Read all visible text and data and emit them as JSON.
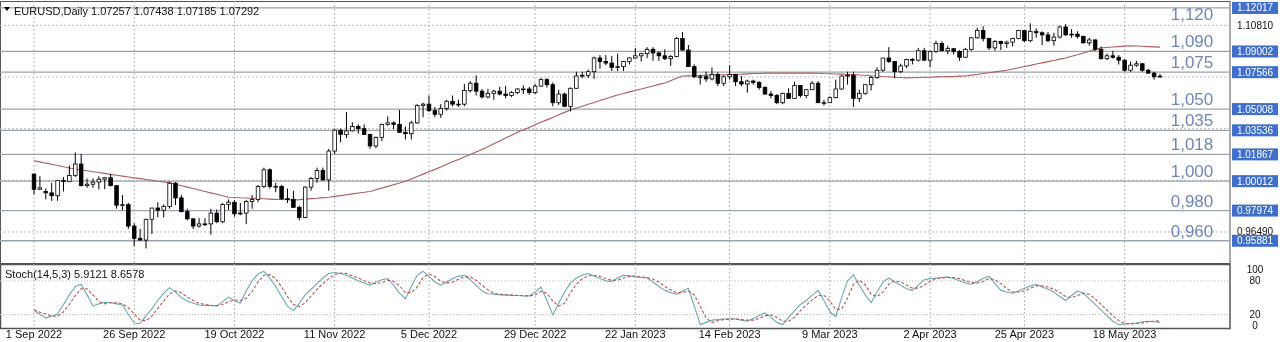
{
  "chart_data": [
    {
      "type": "candlestick",
      "title": "EURUSD,Daily 1.07257 1.07438 1.07185 1.07292",
      "categories": [
        null,
        null,
        null,
        null,
        null,
        null,
        null,
        null,
        null,
        null,
        null,
        null,
        null,
        null,
        null,
        null,
        null,
        null,
        null,
        null,
        null,
        null,
        null,
        null,
        null,
        null,
        null,
        null,
        null,
        null,
        null,
        null,
        null,
        null,
        null,
        null,
        null,
        null,
        null,
        null,
        null,
        null,
        null,
        null,
        null,
        null,
        null,
        null,
        null,
        null,
        null,
        null,
        null,
        null,
        null,
        null,
        null,
        null,
        null,
        null,
        null,
        null,
        null,
        null,
        null,
        null,
        null,
        null,
        null,
        null,
        null,
        null,
        null,
        null,
        null,
        null,
        null,
        null,
        null,
        null,
        null,
        null,
        null,
        null,
        null,
        null,
        null,
        null,
        null,
        null,
        null,
        null,
        null,
        null,
        null,
        null,
        null,
        null,
        null,
        null,
        null,
        null,
        null,
        null,
        null,
        null,
        null,
        null,
        null,
        null,
        null,
        null,
        null,
        null,
        null,
        null,
        null,
        null,
        null,
        null,
        null,
        null,
        null,
        null,
        null,
        null,
        null,
        null,
        null,
        null,
        null,
        null,
        null,
        null,
        null,
        null,
        null,
        null,
        null,
        null,
        null,
        null,
        null,
        null,
        null,
        null,
        null,
        null,
        null,
        null,
        null,
        null,
        null,
        null,
        null,
        null,
        null,
        null,
        null,
        null,
        null,
        null,
        null,
        null,
        null,
        null,
        null,
        null,
        null,
        null,
        null,
        null,
        null,
        null,
        null,
        null,
        null,
        null,
        null,
        null,
        null,
        null,
        null,
        null,
        null,
        null,
        null,
        null,
        null,
        null,
        null,
        null
      ],
      "ohlc": [
        [
          1.005,
          1.0055,
          0.991,
          0.9945
        ],
        [
          0.9945,
          1.0035,
          0.994,
          0.9955
        ],
        [
          0.993,
          0.995,
          0.9875,
          0.992
        ],
        [
          0.992,
          0.999,
          0.9865,
          0.99
        ],
        [
          0.99,
          1.001,
          0.9865,
          1.0005
        ],
        [
          1.0005,
          1.003,
          0.993,
          1.0
        ],
        [
          1.0,
          1.011,
          0.9995,
          1.004
        ],
        [
          1.004,
          1.02,
          1.003,
          1.012
        ],
        [
          1.012,
          1.019,
          0.9965,
          0.997
        ],
        [
          0.997,
          1.002,
          0.9955,
          0.998
        ],
        [
          0.998,
          1.002,
          0.9955,
          0.9995
        ],
        [
          0.9995,
          1.0035,
          0.9945,
          1.0015
        ],
        [
          1.0015,
          1.003,
          0.9945,
          1.0025
        ],
        [
          1.0025,
          1.005,
          0.9965,
          0.997
        ],
        [
          0.997,
          0.9975,
          0.981,
          0.9835
        ],
        [
          0.9835,
          0.9905,
          0.98,
          0.9838
        ],
        [
          0.9838,
          0.985,
          0.967,
          0.969
        ],
        [
          0.969,
          0.971,
          0.955,
          0.9605
        ],
        [
          0.9605,
          0.967,
          0.959,
          0.9593
        ],
        [
          0.9593,
          0.974,
          0.9535,
          0.9737
        ],
        [
          0.9737,
          0.9815,
          0.9635,
          0.9815
        ],
        [
          0.9815,
          0.9855,
          0.975,
          0.98
        ],
        [
          0.98,
          0.984,
          0.975,
          0.9826
        ],
        [
          0.9826,
          0.9999,
          0.981,
          0.9987
        ],
        [
          0.9987,
          0.9995,
          0.9835,
          0.9885
        ],
        [
          0.9885,
          0.9905,
          0.9785,
          0.979
        ],
        [
          0.979,
          0.981,
          0.973,
          0.974
        ],
        [
          0.974,
          0.9745,
          0.967,
          0.969
        ],
        [
          0.969,
          0.9745,
          0.968,
          0.9705
        ],
        [
          0.9705,
          0.9745,
          0.969,
          0.9705
        ],
        [
          0.9705,
          0.981,
          0.963,
          0.978
        ],
        [
          0.978,
          0.9805,
          0.971,
          0.972
        ],
        [
          0.972,
          0.985,
          0.971,
          0.984
        ],
        [
          0.984,
          0.9875,
          0.98,
          0.9855
        ],
        [
          0.9855,
          0.987,
          0.9755,
          0.9775
        ],
        [
          0.9775,
          0.985,
          0.9765,
          0.978
        ],
        [
          0.978,
          0.987,
          0.9705,
          0.986
        ],
        [
          0.986,
          0.9905,
          0.981,
          0.9875
        ],
        [
          0.9875,
          0.9975,
          0.9855,
          0.9965
        ],
        [
          0.9965,
          1.0095,
          0.9955,
          1.008
        ],
        [
          1.008,
          1.009,
          0.995,
          0.9965
        ],
        [
          0.9965,
          0.999,
          0.9925,
          0.9965
        ],
        [
          0.9965,
          0.9975,
          0.987,
          0.988
        ],
        [
          0.988,
          0.995,
          0.985,
          0.9875
        ],
        [
          0.9875,
          0.9935,
          0.9815,
          0.982
        ],
        [
          0.982,
          0.983,
          0.973,
          0.975
        ],
        [
          0.975,
          0.9965,
          0.9745,
          0.996
        ],
        [
          0.996,
          1.003,
          0.9935,
          1.002
        ],
        [
          1.002,
          1.0095,
          0.999,
          1.0075
        ],
        [
          1.0075,
          1.0095,
          1.0005,
          1.001
        ],
        [
          1.001,
          1.0225,
          0.9935,
          1.021
        ],
        [
          1.021,
          1.0365,
          1.019,
          1.0355
        ],
        [
          1.0355,
          1.0365,
          1.027,
          1.0325
        ],
        [
          1.0325,
          1.048,
          1.03,
          1.035
        ],
        [
          1.035,
          1.041,
          1.0345,
          1.038
        ],
        [
          1.038,
          1.0395,
          1.033,
          1.0365
        ],
        [
          1.0365,
          1.0395,
          1.0325,
          1.0325
        ],
        [
          1.0325,
          1.033,
          1.0225,
          1.0245
        ],
        [
          1.0245,
          1.031,
          1.023,
          1.0305
        ],
        [
          1.0305,
          1.04,
          1.028,
          1.0395
        ],
        [
          1.0395,
          1.045,
          1.0385,
          1.0405
        ],
        [
          1.0405,
          1.0415,
          1.036,
          1.0395
        ],
        [
          1.0395,
          1.0495,
          1.0335,
          1.034
        ],
        [
          1.034,
          1.038,
          1.029,
          1.033
        ],
        [
          1.033,
          1.042,
          1.029,
          1.0405
        ],
        [
          1.0405,
          1.0535,
          1.04,
          1.0525
        ],
        [
          1.0525,
          1.0545,
          1.0445,
          1.0535
        ],
        [
          1.0535,
          1.0595,
          1.048,
          1.049
        ],
        [
          1.049,
          1.0515,
          1.0445,
          1.0465
        ],
        [
          1.0465,
          1.0535,
          1.044,
          1.0505
        ],
        [
          1.0505,
          1.0565,
          1.049,
          1.0555
        ],
        [
          1.0555,
          1.0595,
          1.052,
          1.0535
        ],
        [
          1.0535,
          1.0565,
          1.0515,
          1.0535
        ],
        [
          1.0535,
          1.0675,
          1.052,
          1.063
        ],
        [
          1.063,
          1.0695,
          1.0615,
          1.068
        ],
        [
          1.068,
          1.0735,
          1.0595,
          1.0625
        ],
        [
          1.0625,
          1.064,
          1.0575,
          1.0585
        ],
        [
          1.0585,
          1.064,
          1.0575,
          1.061
        ],
        [
          1.061,
          1.0635,
          1.0565,
          1.0625
        ],
        [
          1.0625,
          1.0655,
          1.0595,
          1.0605
        ],
        [
          1.0605,
          1.066,
          1.0575,
          1.0595
        ],
        [
          1.0595,
          1.0625,
          1.0585,
          1.0615
        ],
        [
          1.0615,
          1.0645,
          1.0605,
          1.064
        ],
        [
          1.064,
          1.0665,
          1.0605,
          1.064
        ],
        [
          1.064,
          1.0655,
          1.06,
          1.0615
        ],
        [
          1.0615,
          1.0675,
          1.0605,
          1.066
        ],
        [
          1.066,
          1.0715,
          1.0655,
          1.0705
        ],
        [
          1.0705,
          1.0715,
          1.065,
          1.067
        ],
        [
          1.067,
          1.0685,
          1.052,
          1.0545
        ],
        [
          1.0545,
          1.0635,
          1.053,
          1.0605
        ],
        [
          1.0605,
          1.0615,
          1.0515,
          1.052
        ],
        [
          1.052,
          1.065,
          1.0485,
          1.0645
        ],
        [
          1.0645,
          1.076,
          1.064,
          1.073
        ],
        [
          1.073,
          1.076,
          1.0715,
          1.0735
        ],
        [
          1.0735,
          1.0775,
          1.0715,
          1.076
        ],
        [
          1.076,
          1.0865,
          1.071,
          1.0855
        ],
        [
          1.0855,
          1.0875,
          1.078,
          1.083
        ],
        [
          1.083,
          1.0875,
          1.0805,
          1.082
        ],
        [
          1.082,
          1.087,
          1.0765,
          1.079
        ],
        [
          1.079,
          1.0885,
          1.0765,
          1.0795
        ],
        [
          1.0795,
          1.0835,
          1.0765,
          1.083
        ],
        [
          1.083,
          1.086,
          1.081,
          1.0855
        ],
        [
          1.0855,
          1.0925,
          1.085,
          1.087
        ],
        [
          1.087,
          1.089,
          1.083,
          1.0885
        ],
        [
          1.0885,
          1.093,
          1.0855,
          1.0915
        ],
        [
          1.0915,
          1.093,
          1.0835,
          1.089
        ],
        [
          1.089,
          1.09,
          1.0835,
          1.087
        ],
        [
          1.087,
          1.0915,
          1.084,
          1.085
        ],
        [
          1.085,
          1.0875,
          1.08,
          1.0865
        ],
        [
          1.0865,
          1.1,
          1.086,
          1.099
        ],
        [
          1.099,
          1.1035,
          1.0905,
          1.091
        ],
        [
          1.091,
          1.0945,
          1.0795,
          1.0795
        ],
        [
          1.0795,
          1.081,
          1.0715,
          1.0725
        ],
        [
          1.0725,
          1.074,
          1.067,
          1.0725
        ],
        [
          1.0725,
          1.076,
          1.069,
          1.071
        ],
        [
          1.071,
          1.079,
          1.07,
          1.074
        ],
        [
          1.074,
          1.0755,
          1.066,
          1.068
        ],
        [
          1.068,
          1.0735,
          1.066,
          1.0725
        ],
        [
          1.0725,
          1.0805,
          1.0705,
          1.074
        ],
        [
          1.074,
          1.0745,
          1.066,
          1.069
        ],
        [
          1.069,
          1.073,
          1.066,
          1.0675
        ],
        [
          1.0675,
          1.0705,
          1.0615,
          1.0695
        ],
        [
          1.0695,
          1.0705,
          1.067,
          1.0685
        ],
        [
          1.0685,
          1.0695,
          1.0635,
          1.065
        ],
        [
          1.065,
          1.066,
          1.06,
          1.0605
        ],
        [
          1.0605,
          1.0625,
          1.0575,
          1.0595
        ],
        [
          1.0595,
          1.0605,
          1.0535,
          1.0545
        ],
        [
          1.0545,
          1.0615,
          1.0535,
          1.061
        ],
        [
          1.061,
          1.0645,
          1.0575,
          1.0575
        ],
        [
          1.0575,
          1.069,
          1.0575,
          1.0665
        ],
        [
          1.0665,
          1.0665,
          1.058,
          1.0595
        ],
        [
          1.0595,
          1.064,
          1.0575,
          1.0635
        ],
        [
          1.0635,
          1.0695,
          1.0635,
          1.068
        ],
        [
          1.068,
          1.0695,
          1.0545,
          1.0545
        ],
        [
          1.0545,
          1.0565,
          1.0525,
          1.0545
        ],
        [
          1.0545,
          1.059,
          1.0545,
          1.058
        ],
        [
          1.058,
          1.0705,
          1.0575,
          1.064
        ],
        [
          1.064,
          1.0735,
          1.0635,
          1.073
        ],
        [
          1.073,
          1.076,
          1.067,
          1.0735
        ],
        [
          1.0735,
          1.076,
          1.0515,
          1.0575
        ],
        [
          1.0575,
          1.0635,
          1.055,
          1.061
        ],
        [
          1.061,
          1.067,
          1.06,
          1.067
        ],
        [
          1.067,
          1.073,
          1.063,
          1.072
        ],
        [
          1.072,
          1.079,
          1.071,
          1.077
        ],
        [
          1.077,
          1.0855,
          1.076,
          1.0855
        ],
        [
          1.0855,
          1.093,
          1.082,
          1.083
        ],
        [
          1.083,
          1.0835,
          1.0715,
          1.076
        ],
        [
          1.076,
          1.0815,
          1.075,
          1.08
        ],
        [
          1.08,
          1.085,
          1.0785,
          1.0845
        ],
        [
          1.0845,
          1.0855,
          1.081,
          1.084
        ],
        [
          1.084,
          1.0925,
          1.083,
          1.0905
        ],
        [
          1.0905,
          1.0925,
          1.0835,
          1.084
        ],
        [
          1.084,
          1.0905,
          1.079,
          1.09
        ],
        [
          1.09,
          1.0975,
          1.089,
          1.0955
        ],
        [
          1.0955,
          1.097,
          1.0905,
          1.0905
        ],
        [
          1.0905,
          1.094,
          1.088,
          1.092
        ],
        [
          1.092,
          1.0925,
          1.088,
          1.09
        ],
        [
          1.09,
          1.091,
          1.0835,
          1.086
        ],
        [
          1.086,
          1.0925,
          1.0855,
          1.0915
        ],
        [
          1.0915,
          1.1,
          1.0905,
          1.0995
        ],
        [
          1.0995,
          1.1065,
          1.099,
          1.1045
        ],
        [
          1.1045,
          1.1075,
          1.097,
          1.099
        ],
        [
          1.099,
          1.0995,
          1.091,
          1.0925
        ],
        [
          1.0925,
          1.098,
          1.0905,
          1.097
        ],
        [
          1.097,
          1.0975,
          1.091,
          1.0955
        ],
        [
          1.0955,
          1.0975,
          1.0925,
          1.0965
        ],
        [
          1.0965,
          1.0995,
          1.0935,
          1.099
        ],
        [
          1.099,
          1.105,
          1.0985,
          1.1045
        ],
        [
          1.1045,
          1.105,
          1.0965,
          1.0975
        ],
        [
          1.0975,
          1.1095,
          1.0965,
          1.104
        ],
        [
          1.104,
          1.106,
          1.0995,
          1.103
        ],
        [
          1.103,
          1.104,
          1.0945,
          1.1015
        ],
        [
          1.1015,
          1.1035,
          1.0965,
          1.0975
        ],
        [
          1.0975,
          1.103,
          1.094,
          1.1
        ],
        [
          1.1,
          1.108,
          1.099,
          1.107
        ],
        [
          1.107,
          1.109,
          1.101,
          1.1015
        ],
        [
          1.1015,
          1.1055,
          1.0995,
          1.102
        ],
        [
          1.102,
          1.104,
          1.099,
          1.1005
        ],
        [
          1.1005,
          1.101,
          1.0955,
          1.096
        ],
        [
          1.096,
          1.0995,
          1.094,
          1.098
        ],
        [
          1.098,
          1.0985,
          1.0905,
          1.0915
        ],
        [
          1.0915,
          1.0935,
          1.0845,
          1.085
        ],
        [
          1.085,
          1.0885,
          1.084,
          1.087
        ],
        [
          1.087,
          1.0905,
          1.085,
          1.086
        ],
        [
          1.086,
          1.0875,
          1.081,
          1.084
        ],
        [
          1.084,
          1.0845,
          1.076,
          1.077
        ],
        [
          1.077,
          1.083,
          1.076,
          1.0805
        ],
        [
          1.0805,
          1.0835,
          1.0795,
          1.0815
        ],
        [
          1.0815,
          1.082,
          1.076,
          1.077
        ],
        [
          1.077,
          1.078,
          1.0745,
          1.075
        ],
        [
          1.075,
          1.076,
          1.0705,
          1.0725
        ],
        [
          1.07257,
          1.07438,
          1.07185,
          1.07292
        ]
      ],
      "series": [
        {
          "type": "line",
          "color": "#b25c5c",
          "values": [
            1.0143,
            1.0135,
            1.0126,
            1.0118,
            1.011,
            1.0101,
            1.0093,
            1.0085,
            1.0079,
            1.0073,
            1.0067,
            1.0061,
            1.0055,
            1.0048,
            1.0042,
            1.0036,
            1.003,
            1.0024,
            1.0019,
            1.0013,
            1.0007,
            1.0001,
            0.9996,
            0.999,
            0.998,
            0.997,
            0.996,
            0.995,
            0.994,
            0.993,
            0.992,
            0.991,
            0.99,
            0.989,
            0.9888,
            0.9886,
            0.9885,
            0.9883,
            0.9881,
            0.9879,
            0.9877,
            0.9875,
            0.9874,
            0.9872,
            0.987,
            0.9873,
            0.9877,
            0.988,
            0.9883,
            0.9887,
            0.989,
            0.9896,
            0.9901,
            0.9907,
            0.9913,
            0.9919,
            0.9924,
            0.993,
            0.9942,
            0.9953,
            0.9965,
            0.9977,
            0.9988,
            1.0,
            1.0017,
            1.0033,
            1.005,
            1.0067,
            1.0083,
            1.01,
            1.0118,
            1.0135,
            1.0152,
            1.0169,
            1.0186,
            1.0203,
            1.022,
            1.024,
            1.026,
            1.028,
            1.03,
            1.032,
            1.034,
            1.0357,
            1.0374,
            1.0392,
            1.0409,
            1.0426,
            1.0443,
            1.0461,
            1.0478,
            1.0495,
            1.0508,
            1.0521,
            1.0534,
            1.0547,
            1.056,
            1.0573,
            1.0586,
            1.0599,
            1.0609,
            1.062,
            1.063,
            1.064,
            1.0651,
            1.0661,
            1.0672,
            1.0682,
            1.0698,
            1.0714,
            1.073,
            1.0731,
            1.0732,
            1.0733,
            1.0735,
            1.0736,
            1.0737,
            1.0739,
            1.074,
            1.0742,
            1.0743,
            1.0745,
            1.0747,
            1.0748,
            1.075,
            1.075,
            1.075,
            1.075,
            1.075,
            1.075,
            1.075,
            1.075,
            1.075,
            1.0749,
            1.0747,
            1.0746,
            1.0744,
            1.0743,
            1.0741,
            1.074,
            1.0737,
            1.0735,
            1.0732,
            1.073,
            1.0727,
            1.0725,
            1.0722,
            1.072,
            1.0717,
            1.0718,
            1.072,
            1.0721,
            1.0722,
            1.0724,
            1.0725,
            1.0726,
            1.0727,
            1.0729,
            1.073,
            1.0736,
            1.0741,
            1.0747,
            1.0753,
            1.0759,
            1.0764,
            1.077,
            1.0779,
            1.0787,
            1.0796,
            1.0804,
            1.0813,
            1.0821,
            1.083,
            1.0838,
            1.0847,
            1.0855,
            1.0867,
            1.0878,
            1.089,
            1.0902,
            1.0913,
            1.0925,
            1.0928,
            1.0931,
            1.0934,
            1.0937,
            1.094,
            1.0938,
            1.0936,
            1.0934,
            1.0932,
            1.093
          ]
        }
      ],
      "ylim": [
        0.9434,
        1.125
      ],
      "yticks": [
        {
          "value": 1.1081,
          "label": "1.10810"
        },
        {
          "value": 1.0723,
          "label": null
        },
        {
          "value": 1.0365,
          "label": null
        },
        {
          "value": 1.0007,
          "label": null
        },
        {
          "value": 0.9649,
          "label": "0.96490"
        }
      ],
      "ref_lines": [
        {
          "axis": "y",
          "value": 1.12017,
          "label": "1.12017",
          "color": "#9aa3ae"
        },
        {
          "axis": "y",
          "value": 1.09002,
          "label": "1.09002",
          "color": "#9aa3ae"
        },
        {
          "axis": "y",
          "value": 1.07566,
          "label": "1.07566",
          "color": "#9aa3ae"
        },
        {
          "axis": "y",
          "value": 1.05008,
          "label": "1.05008",
          "color": "#9aa3ae"
        },
        {
          "axis": "y",
          "value": 1.03536,
          "label": "1.03536",
          "color": "#9aa3ae"
        },
        {
          "axis": "y",
          "value": 1.01867,
          "label": "1.01867",
          "color": "#9aa3ae"
        },
        {
          "axis": "y",
          "value": 1.00012,
          "label": "1.00012",
          "color": "#9aa3ae"
        },
        {
          "axis": "y",
          "value": 0.97974,
          "label": "0.97974",
          "color": "#9aa3ae"
        },
        {
          "axis": "y",
          "value": 0.95881,
          "label": "0.95881",
          "color": "#9aa3ae"
        }
      ],
      "annotations": [
        "1,120",
        "1,090",
        "1,075",
        "1,050",
        "1,035",
        "1,018",
        "1,000",
        "0,980",
        "0,960"
      ],
      "grid": true
    },
    {
      "type": "line",
      "title": "Stoch(14,5,3) 5.9121 8.6578",
      "categories": [
        "1 Sep 2022",
        null,
        null,
        null,
        null,
        null,
        null,
        null,
        null,
        null,
        null,
        null,
        null,
        null,
        null,
        null,
        null,
        "26 Sep 2022",
        null,
        null,
        null,
        null,
        null,
        null,
        null,
        null,
        null,
        null,
        null,
        null,
        null,
        null,
        null,
        null,
        "19 Oct 2022",
        null,
        null,
        null,
        null,
        null,
        null,
        null,
        null,
        null,
        null,
        null,
        null,
        null,
        null,
        null,
        null,
        "11 Nov 2022",
        null,
        null,
        null,
        null,
        null,
        null,
        null,
        null,
        null,
        null,
        null,
        null,
        null,
        null,
        null,
        "5 Dec 2022",
        null,
        null,
        null,
        null,
        null,
        null,
        null,
        null,
        null,
        null,
        null,
        null,
        null,
        null,
        null,
        null,
        null,
        "29 Dec 2022",
        null,
        null,
        null,
        null,
        null,
        null,
        null,
        null,
        null,
        null,
        null,
        null,
        null,
        null,
        null,
        null,
        "22 Jan 2023",
        null,
        null,
        null,
        null,
        null,
        null,
        null,
        null,
        null,
        null,
        null,
        null,
        null,
        null,
        null,
        "14 Feb 2023",
        null,
        null,
        null,
        null,
        null,
        null,
        null,
        null,
        null,
        null,
        null,
        null,
        null,
        null,
        null,
        null,
        "9 Mar 2023",
        null,
        null,
        null,
        null,
        null,
        null,
        null,
        null,
        null,
        null,
        null,
        null,
        null,
        null,
        null,
        null,
        "2 Apr 2023",
        null,
        null,
        null,
        null,
        null,
        null,
        null,
        null,
        null,
        null,
        null,
        null,
        null,
        null,
        null,
        "25 Apr 2023",
        null,
        null,
        null,
        null,
        null,
        null,
        null,
        null,
        null,
        null,
        null,
        null,
        null,
        null,
        null,
        null,
        "18 May 2023",
        null,
        null,
        null,
        null,
        null,
        null
      ],
      "series": [
        {
          "color": "#6aa9b4",
          "line_style": "solid",
          "values": [
            28,
            20,
            14,
            17,
            21,
            38,
            55,
            70,
            74,
            55,
            35,
            39,
            42,
            41,
            39,
            37,
            20,
            5,
            4,
            18,
            30,
            45,
            58,
            68,
            60,
            50,
            44,
            40,
            37,
            36,
            36,
            35,
            43,
            51,
            45,
            40,
            62,
            80,
            92,
            97,
            85,
            70,
            52,
            35,
            27,
            40,
            55,
            65,
            75,
            85,
            93,
            95,
            93,
            90,
            85,
            80,
            76,
            72,
            78,
            82,
            84,
            72,
            58,
            48,
            70,
            90,
            97,
            88,
            78,
            72,
            78,
            84,
            88,
            90,
            82,
            72,
            62,
            57,
            56,
            55,
            55,
            54,
            54,
            53,
            53,
            60,
            69,
            45,
            19,
            40,
            60,
            76,
            85,
            90,
            93,
            88,
            84,
            80,
            79,
            85,
            90,
            89,
            87,
            86,
            85,
            78,
            70,
            63,
            59,
            56,
            62,
            67,
            35,
            2,
            6,
            10,
            11,
            12,
            12,
            12,
            10,
            8,
            13,
            18,
            23,
            15,
            6,
            2,
            15,
            27,
            38,
            45,
            54,
            63,
            45,
            25,
            16,
            50,
            80,
            91,
            72,
            55,
            41,
            60,
            78,
            85,
            78,
            72,
            66,
            63,
            72,
            82,
            84,
            85,
            86,
            87,
            84,
            80,
            76,
            74,
            79,
            84,
            88,
            75,
            63,
            60,
            58,
            62,
            67,
            71,
            74,
            69,
            65,
            60,
            52,
            45,
            54,
            62,
            58,
            48,
            38,
            28,
            18,
            8,
            2,
            3,
            4,
            5,
            7,
            8,
            7,
            6
          ]
        },
        {
          "color": "#c0504d",
          "line_style": "dashed",
          "values": [
            28,
            24,
            21,
            17,
            17,
            25,
            38,
            54,
            66,
            66,
            55,
            43,
            39,
            41,
            41,
            39,
            32,
            21,
            10,
            9,
            17,
            31,
            44,
            57,
            62,
            59,
            51,
            45,
            40,
            38,
            36,
            36,
            38,
            43,
            46,
            45,
            49,
            61,
            78,
            90,
            91,
            84,
            69,
            52,
            38,
            34,
            41,
            53,
            65,
            75,
            84,
            91,
            94,
            93,
            89,
            85,
            80,
            76,
            75,
            77,
            81,
            79,
            71,
            59,
            59,
            69,
            86,
            92,
            88,
            79,
            76,
            78,
            83,
            87,
            87,
            81,
            72,
            64,
            58,
            56,
            55,
            55,
            54,
            54,
            53,
            55,
            61,
            58,
            44,
            35,
            40,
            59,
            74,
            84,
            89,
            90,
            88,
            84,
            81,
            81,
            85,
            88,
            89,
            87,
            86,
            83,
            78,
            70,
            64,
            59,
            59,
            62,
            55,
            35,
            14,
            6,
            9,
            11,
            12,
            12,
            11,
            10,
            10,
            13,
            18,
            19,
            15,
            8,
            8,
            15,
            27,
            37,
            46,
            54,
            54,
            44,
            29,
            30,
            49,
            74,
            81,
            73,
            56,
            52,
            60,
            74,
            80,
            78,
            72,
            67,
            67,
            72,
            79,
            84,
            85,
            86,
            86,
            84,
            80,
            77,
            76,
            79,
            84,
            82,
            75,
            66,
            60,
            60,
            62,
            67,
            71,
            71,
            69,
            65,
            59,
            52,
            50,
            54,
            58,
            56,
            48,
            38,
            28,
            18,
            9,
            4,
            3,
            4,
            5,
            7,
            8,
            9
          ]
        }
      ],
      "ylim": [
        -4,
        110
      ],
      "yticks": [
        0,
        20,
        80,
        100
      ],
      "ref_lines": [
        {
          "axis": "y",
          "value": 20,
          "line_style": "dotted"
        },
        {
          "axis": "y",
          "value": 80,
          "line_style": "dotted"
        }
      ],
      "grid": "x"
    }
  ]
}
